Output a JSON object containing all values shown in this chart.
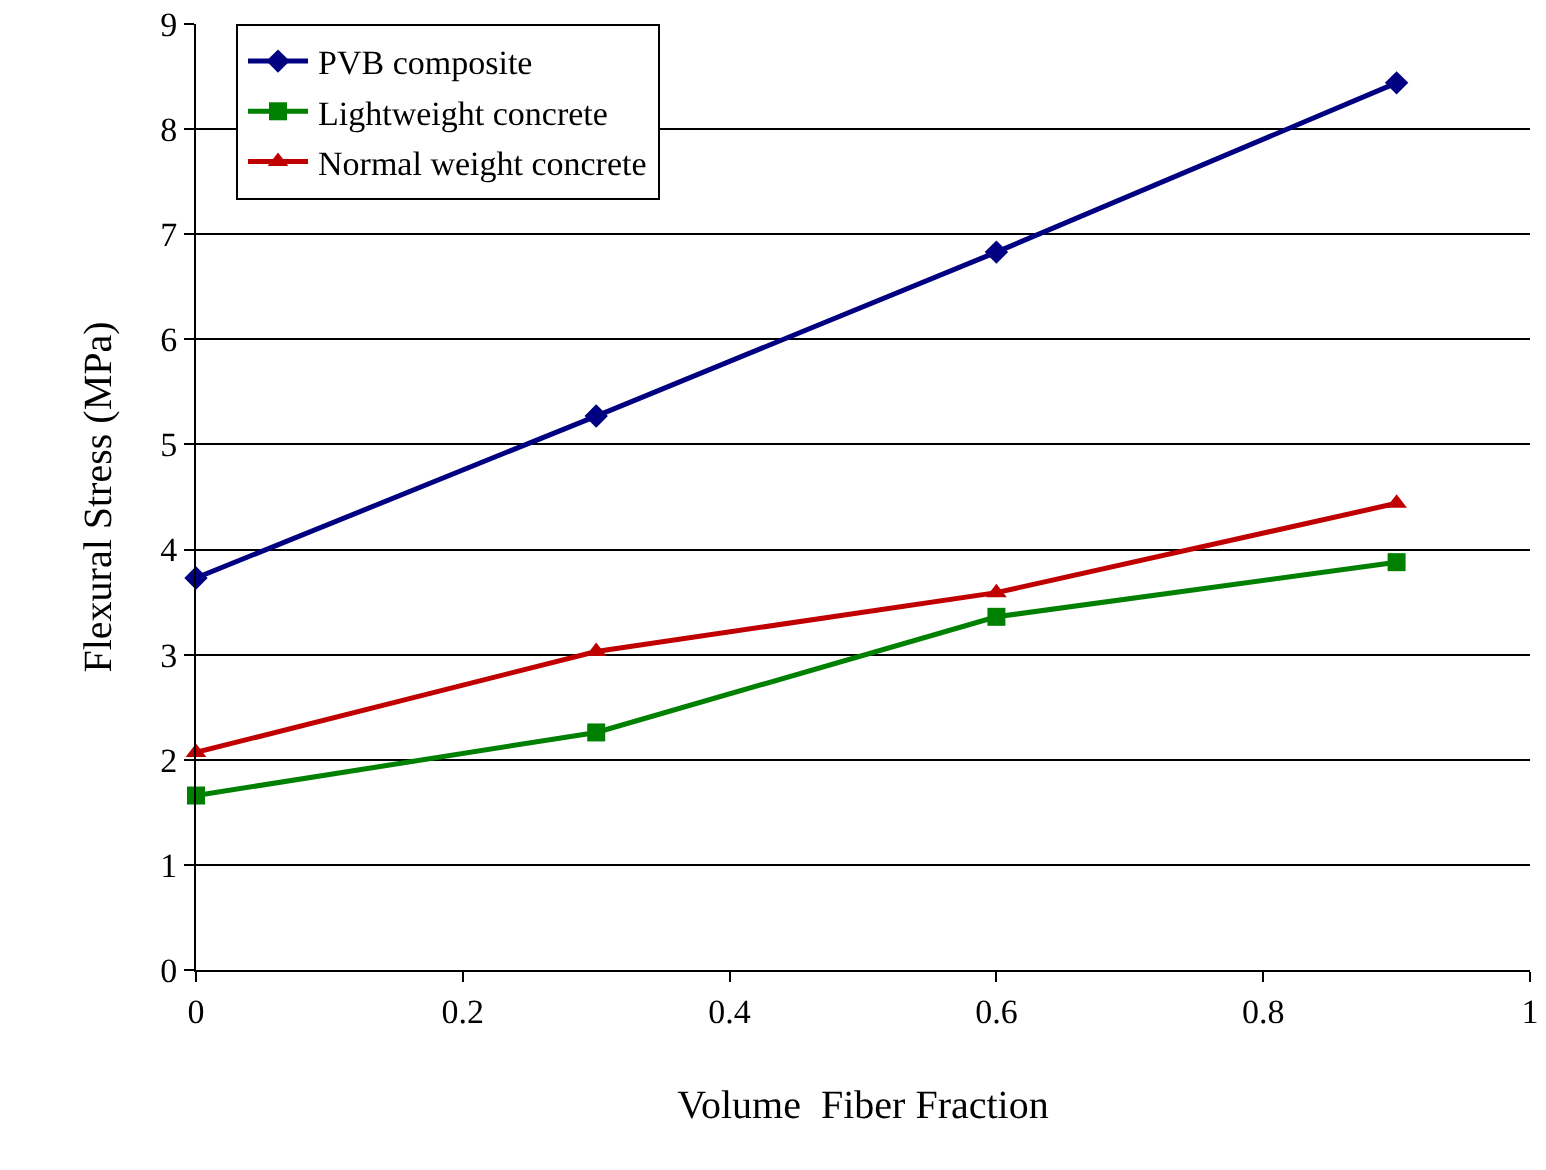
{
  "chart_data": {
    "type": "line",
    "xlabel": "Volume  Fiber Fraction",
    "ylabel": "Flexural Stress (MPa)",
    "x": [
      0,
      0.3,
      0.6,
      0.9
    ],
    "series": [
      {
        "name": "PVB composite",
        "color": "#000080",
        "marker": "diamond",
        "values": [
          3.73,
          5.27,
          6.83,
          8.44
        ]
      },
      {
        "name": "Lightweight concrete",
        "color": "#008000",
        "marker": "square",
        "values": [
          1.66,
          2.26,
          3.36,
          3.88
        ]
      },
      {
        "name": "Normal weight concrete",
        "color": "#c00000",
        "marker": "triangle",
        "values": [
          2.07,
          3.03,
          3.59,
          4.44
        ]
      }
    ],
    "xlim": [
      0,
      1
    ],
    "xticks": [
      0,
      0.2,
      0.4,
      0.6,
      0.8,
      1
    ],
    "ylim": [
      0,
      9
    ],
    "yticks": [
      0,
      1,
      2,
      3,
      4,
      5,
      6,
      7,
      8,
      9
    ],
    "grid": "y",
    "legend": "top left",
    "line_style": "solid"
  }
}
